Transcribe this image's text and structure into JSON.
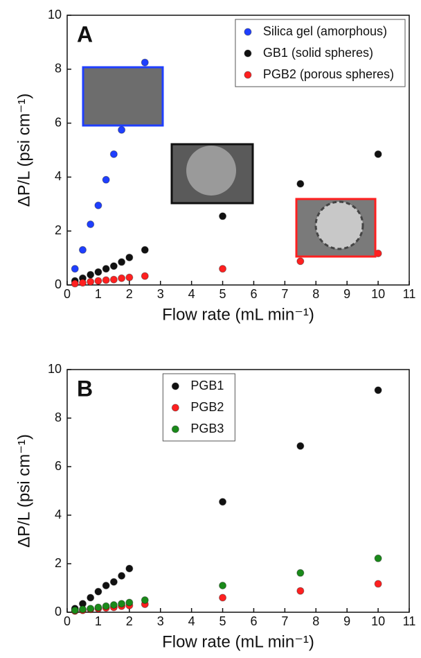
{
  "chart_data": [
    {
      "type": "scatter",
      "panel_label": "A",
      "xlabel": "Flow rate (mL min⁻¹)",
      "ylabel": "ΔP/L (psi cm⁻¹)",
      "xlim": [
        0,
        11
      ],
      "xticks": [
        0,
        1,
        2,
        3,
        4,
        5,
        6,
        7,
        8,
        9,
        10,
        11
      ],
      "ylim": [
        0,
        10
      ],
      "yticks": [
        0,
        2,
        4,
        6,
        8,
        10
      ],
      "legend": "upper right",
      "series": [
        {
          "name": "Silica gel (amorphous)",
          "color": "#1f3fff",
          "x": [
            0.25,
            0.5,
            0.75,
            1.0,
            1.25,
            1.5,
            1.75,
            2.5
          ],
          "values": [
            0.6,
            1.3,
            2.25,
            2.95,
            3.9,
            4.85,
            5.75,
            8.25
          ]
        },
        {
          "name": "GB1 (solid spheres)",
          "color": "#111111",
          "x": [
            0.25,
            0.5,
            0.75,
            1.0,
            1.25,
            1.5,
            1.75,
            2.0,
            2.5,
            5,
            7.5,
            10
          ],
          "values": [
            0.15,
            0.25,
            0.38,
            0.48,
            0.6,
            0.7,
            0.85,
            1.02,
            1.3,
            2.55,
            3.75,
            4.85
          ]
        },
        {
          "name": "PGB2 (porous spheres)",
          "color": "#ff2020",
          "x": [
            0.25,
            0.5,
            0.75,
            1.0,
            1.25,
            1.5,
            1.75,
            2.0,
            2.5,
            5,
            7.5,
            10
          ],
          "values": [
            0.05,
            0.08,
            0.12,
            0.15,
            0.18,
            0.2,
            0.25,
            0.28,
            0.33,
            0.6,
            0.88,
            1.17
          ]
        }
      ]
    },
    {
      "type": "scatter",
      "panel_label": "B",
      "xlabel": "Flow rate (mL min⁻¹)",
      "ylabel": "ΔP/L (psi cm⁻¹)",
      "xlim": [
        0,
        11
      ],
      "xticks": [
        0,
        1,
        2,
        3,
        4,
        5,
        6,
        7,
        8,
        9,
        10,
        11
      ],
      "ylim": [
        0,
        10
      ],
      "yticks": [
        0,
        2,
        4,
        6,
        8,
        10
      ],
      "legend": "upper center",
      "series": [
        {
          "name": "PGB1",
          "color": "#111111",
          "x": [
            0.25,
            0.5,
            0.75,
            1.0,
            1.25,
            1.5,
            1.75,
            2.0,
            5,
            7.5,
            10
          ],
          "values": [
            0.15,
            0.35,
            0.6,
            0.85,
            1.1,
            1.25,
            1.5,
            1.8,
            4.55,
            6.85,
            9.15
          ]
        },
        {
          "name": "PGB2",
          "color": "#ff2020",
          "x": [
            0.25,
            0.5,
            0.75,
            1.0,
            1.25,
            1.5,
            1.75,
            2.0,
            2.5,
            5,
            7.5,
            10
          ],
          "values": [
            0.05,
            0.08,
            0.12,
            0.15,
            0.18,
            0.2,
            0.25,
            0.28,
            0.33,
            0.6,
            0.88,
            1.17
          ]
        },
        {
          "name": "PGB3",
          "color": "#1a8a1a",
          "x": [
            0.25,
            0.5,
            0.75,
            1.0,
            1.25,
            1.5,
            1.75,
            2.0,
            2.5,
            5,
            7.5,
            10
          ],
          "values": [
            0.08,
            0.12,
            0.15,
            0.2,
            0.25,
            0.3,
            0.35,
            0.4,
            0.5,
            1.1,
            1.62,
            2.22
          ]
        }
      ]
    }
  ]
}
